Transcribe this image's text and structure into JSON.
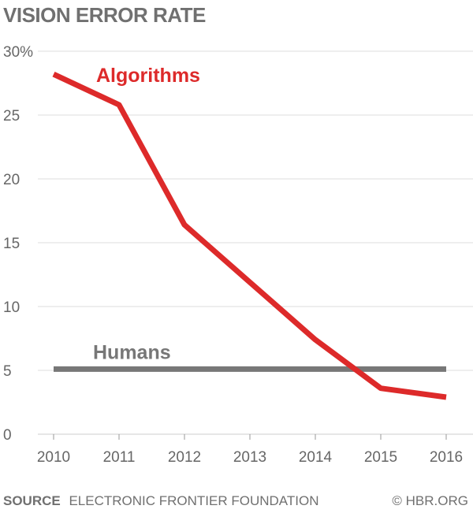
{
  "chart_data": {
    "type": "line",
    "title": "VISION ERROR RATE",
    "x": [
      2010,
      2011,
      2012,
      2013,
      2014,
      2015,
      2016
    ],
    "x_tick_labels": [
      "2010",
      "2011",
      "2012",
      "2013",
      "2014",
      "2015",
      "2016"
    ],
    "y_tick_labels": [
      "0",
      "5",
      "10",
      "15",
      "20",
      "25",
      "30%"
    ],
    "y_ticks": [
      0,
      5,
      10,
      15,
      20,
      25,
      30
    ],
    "ylim": [
      0,
      30
    ],
    "grid": "horizontal",
    "series": [
      {
        "name": "Algorithms",
        "color": "#dd2a2a",
        "values": [
          28.2,
          25.8,
          16.4,
          11.9,
          7.4,
          3.6,
          2.9
        ]
      },
      {
        "name": "Humans",
        "color": "#777777",
        "values": [
          5.1,
          5.1,
          5.1,
          5.1,
          5.1,
          5.1,
          5.1
        ]
      }
    ]
  },
  "footer": {
    "source_label": "SOURCE",
    "source_text": "ELECTRONIC FRONTIER FOUNDATION",
    "credit": "© HBR.ORG"
  }
}
